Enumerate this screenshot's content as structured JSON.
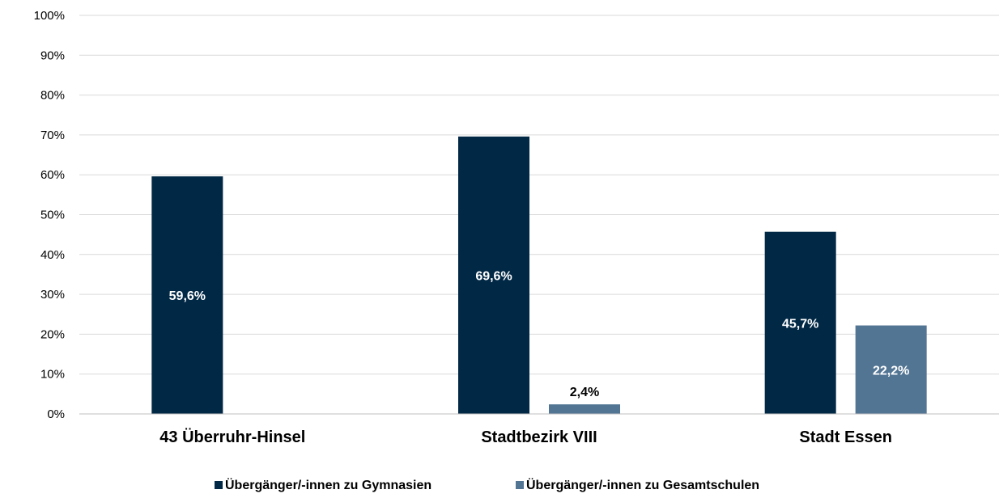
{
  "chart_data": {
    "type": "bar",
    "title": "",
    "xlabel": "",
    "ylabel": "",
    "categories": [
      "43 Überruhr-Hinsel",
      "Stadtbezirk VIII",
      "Stadt Essen"
    ],
    "series": [
      {
        "name": "Übergänger/-innen zu Gymnasien",
        "values": [
          59.6,
          69.6,
          45.7
        ],
        "labels": [
          "59,6%",
          "69,6%",
          "45,7%"
        ],
        "color": "#012845",
        "label_color": "#ffffff"
      },
      {
        "name": "Übergänger/-innen zu Gesamtschulen",
        "values": [
          null,
          2.4,
          22.2
        ],
        "labels": [
          "",
          "2,4%",
          "22,2%"
        ],
        "color": "#527594",
        "label_color_inside": "#ffffff",
        "label_color_outside": "#000000"
      }
    ],
    "ylim": [
      0,
      100
    ],
    "yticks": [
      "0%",
      "10%",
      "20%",
      "30%",
      "40%",
      "50%",
      "60%",
      "70%",
      "80%",
      "90%",
      "100%"
    ],
    "grid": true,
    "legend_position": "bottom-center"
  }
}
